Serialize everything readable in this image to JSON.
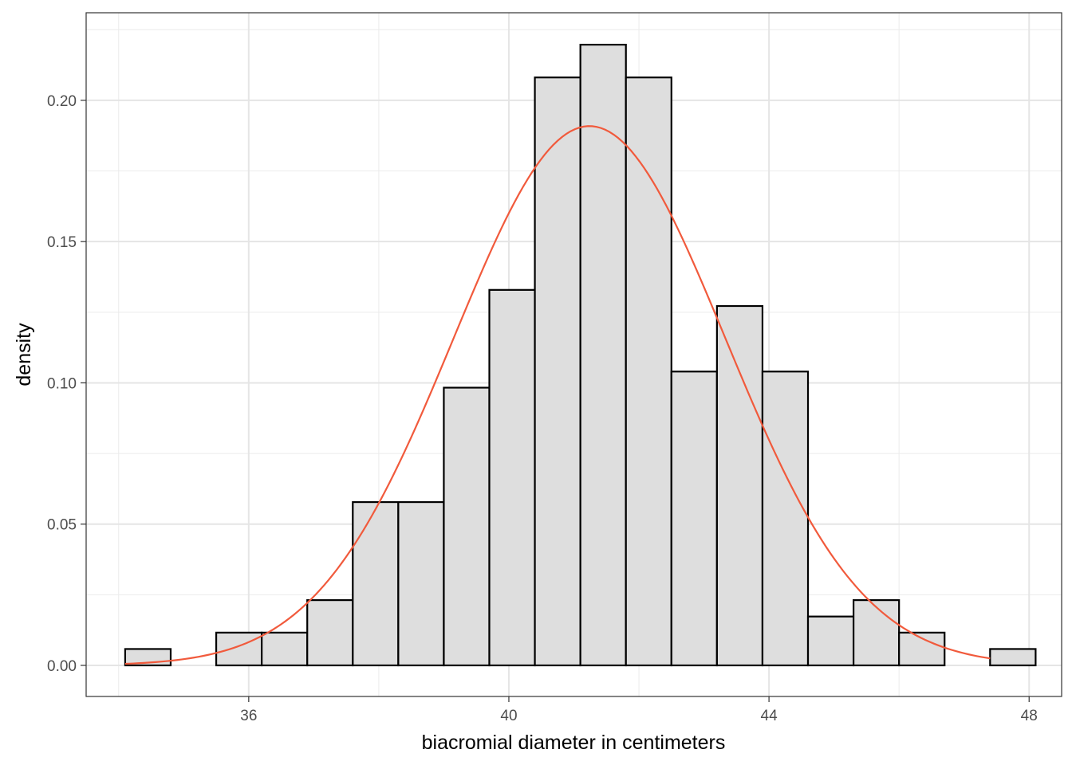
{
  "chart_data": {
    "type": "bar",
    "title": "",
    "xlabel": "biacromial diameter in centimeters",
    "ylabel": "density",
    "xlim": [
      33.5,
      48.5
    ],
    "ylim": [
      -0.011,
      0.231
    ],
    "x_ticks": [
      36,
      40,
      44,
      48
    ],
    "x_tick_labels": [
      "36",
      "40",
      "44",
      "48"
    ],
    "y_ticks": [
      0.0,
      0.05,
      0.1,
      0.15,
      0.2
    ],
    "y_tick_labels": [
      "0.00",
      "0.05",
      "0.10",
      "0.15",
      "0.20"
    ],
    "grid": true,
    "histogram": {
      "bin_start": 34.1,
      "bin_width": 0.7,
      "values": [
        0.0058,
        0.0,
        0.0116,
        0.0116,
        0.0231,
        0.0578,
        0.0578,
        0.0983,
        0.1329,
        0.2081,
        0.2197,
        0.2081,
        0.104,
        0.1272,
        0.104,
        0.0173,
        0.0231,
        0.0116,
        0.0,
        0.0058
      ],
      "fill_color": "#dedede",
      "stroke_color": "#000000"
    },
    "density_curve": {
      "distribution": "normal",
      "mean": 41.24,
      "sd": 2.09,
      "x_range": [
        34.1,
        47.4
      ],
      "color": "#f15a3c"
    }
  }
}
